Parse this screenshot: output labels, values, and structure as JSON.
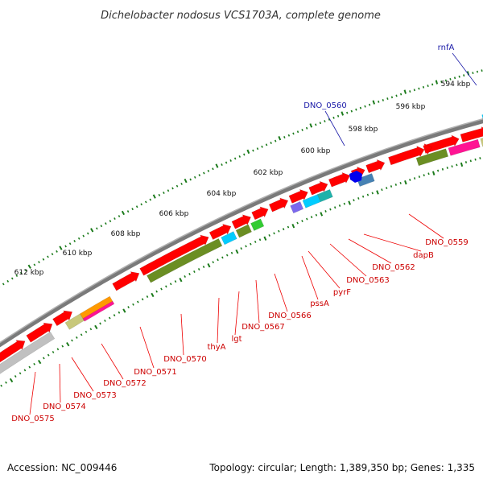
{
  "title": "Dichelobacter nodosus VCS1703A, complete genome",
  "footer": {
    "accession": "Accession: NC_009446",
    "summary": "Topology: circular; Length: 1,389,350 bp; Genes: 1,335"
  },
  "colors": {
    "background": "#ffffff",
    "backbone": "#808080",
    "forward_gene": "#ff0000",
    "tick": "#1a7a1a",
    "label_red": "#cc0000",
    "label_blue": "#0000aa",
    "olive": "#6b8e23",
    "cyan": "#00ccff",
    "blue_feature": "#0000ee",
    "pink": "#ff1493",
    "orange": "#ff9900",
    "purple": "#7b68ee",
    "green": "#33cc33",
    "teal": "#20b2aa",
    "steel": "#4682b4",
    "khaki": "#c8c87a",
    "grey": "#c0c0c0"
  },
  "kbp_ticks": [
    "594 kbp",
    "596 kbp",
    "598 kbp",
    "600 kbp",
    "602 kbp",
    "604 kbp",
    "606 kbp",
    "608 kbp",
    "610 kbp",
    "612 kbp"
  ],
  "gene_labels_red": [
    "DNO_0559",
    "dapB",
    "DNO_0562",
    "DNO_0563",
    "pyrF",
    "pssA",
    "DNO_0566",
    "DNO_0567",
    "lgt",
    "thyA",
    "DNO_0570",
    "DNO_0571",
    "DNO_0572",
    "DNO_0573",
    "DNO_0574",
    "DNO_0575"
  ],
  "gene_labels_blue": [
    "rnfA",
    "DNO_0560"
  ]
}
